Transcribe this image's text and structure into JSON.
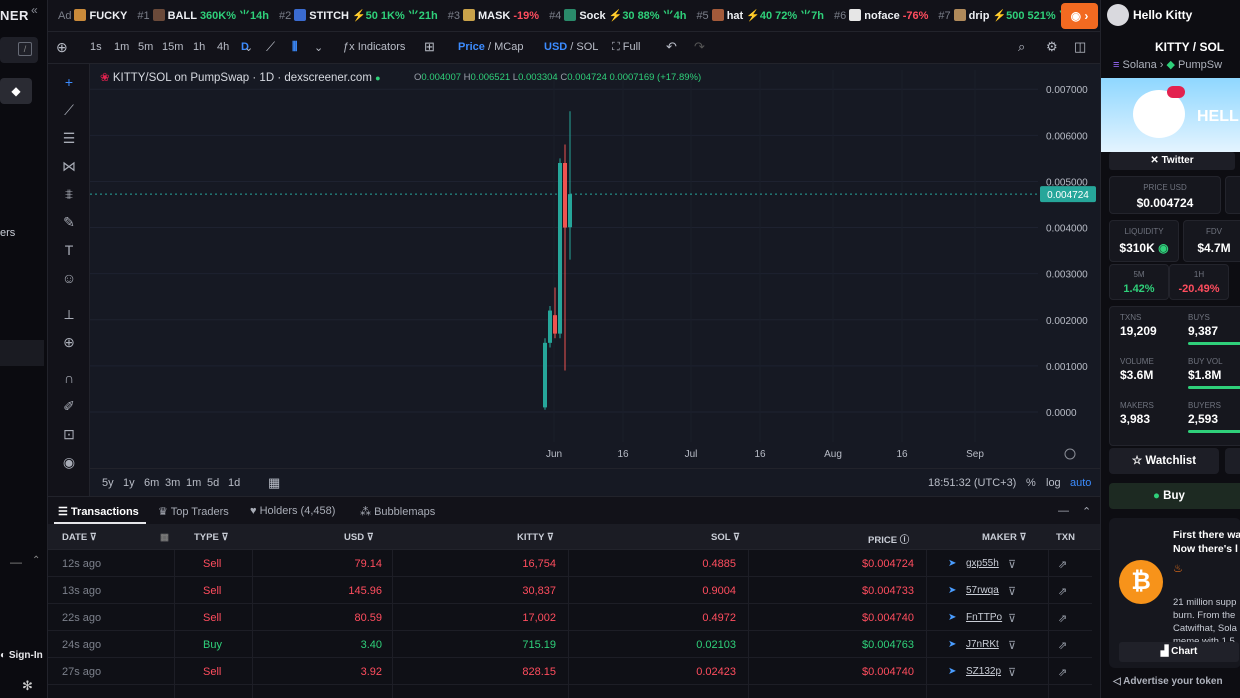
{
  "brand": {
    "text": "NER"
  },
  "sidebar": {
    "partial_label": "ers",
    "sign_in": "Sign-In"
  },
  "ticker": [
    {
      "rank": "Ad",
      "name": "FUCKY",
      "stats": [],
      "avatar_color": "#c98a3a"
    },
    {
      "rank": "#1",
      "name": "BALL",
      "stats": [
        {
          "text": "360K%",
          "dir": "up"
        },
        {
          "text": "14h",
          "dir": "up",
          "icon": "sprout"
        }
      ],
      "avatar_color": "#6b4a3a"
    },
    {
      "rank": "#2",
      "name": "STITCH",
      "stats": [
        {
          "text": "50",
          "dir": "bolt"
        },
        {
          "text": "1K%",
          "dir": "up"
        },
        {
          "text": "21h",
          "dir": "up",
          "icon": "sprout"
        }
      ],
      "avatar_color": "#3a6bd0"
    },
    {
      "rank": "#3",
      "name": "MASK",
      "stats": [
        {
          "text": "-19%",
          "dir": "dn"
        }
      ],
      "avatar_color": "#c9a24a"
    },
    {
      "rank": "#4",
      "name": "Sock",
      "stats": [
        {
          "text": "30",
          "dir": "bolt"
        },
        {
          "text": "88%",
          "dir": "up"
        },
        {
          "text": "4h",
          "dir": "up",
          "icon": "sprout"
        }
      ],
      "avatar_color": "#2a8a6a"
    },
    {
      "rank": "#5",
      "name": "hat",
      "stats": [
        {
          "text": "40",
          "dir": "bolt"
        },
        {
          "text": "72%",
          "dir": "up"
        },
        {
          "text": "7h",
          "dir": "up",
          "icon": "sprout"
        }
      ],
      "avatar_color": "#a35a3a"
    },
    {
      "rank": "#6",
      "name": "noface",
      "stats": [
        {
          "text": "-76%",
          "dir": "dn"
        }
      ],
      "avatar_color": "#e6e6e6"
    },
    {
      "rank": "#7",
      "name": "drip",
      "stats": [
        {
          "text": "500",
          "dir": "bolt"
        },
        {
          "text": "521%",
          "dir": "up"
        },
        {
          "text": "2",
          "dir": "up",
          "icon": "sprout"
        }
      ],
      "avatar_color": "#b08a5a"
    }
  ],
  "toolbar": {
    "intervals": [
      "1s",
      "1m",
      "5m",
      "15m",
      "1h",
      "4h",
      "D"
    ],
    "active_interval": "D",
    "indicators": "Indicators",
    "price_label": "Price",
    "mcap_label": "MCap",
    "usd_label": "USD",
    "sol_label": "SOL",
    "full_label": "Full"
  },
  "chart_legend": {
    "title": "KITTY/SOL on PumpSwap · 1D · dexscreener.com",
    "o_label": "O",
    "o": "0.004007",
    "h_label": "H",
    "h": "0.006521",
    "l_label": "L",
    "l": "0.003304",
    "c_label": "C",
    "c": "0.004724",
    "change": "0.0007169 (+17.89%)"
  },
  "chart_data": {
    "type": "candlestick",
    "title": "KITTY/SOL on PumpSwap · 1D · dexscreener.com",
    "y_ticks": [
      "0.007000",
      "0.006000",
      "0.005000",
      "0.004000",
      "0.003000",
      "0.002000",
      "0.001000",
      "0.0000"
    ],
    "ylim": [
      0,
      0.0072
    ],
    "x_ticks": [
      "Jun",
      "16",
      "Jul",
      "16",
      "Aug",
      "16",
      "Sep"
    ],
    "last_price": "0.004724",
    "last_price_value": 0.004724,
    "candles": [
      {
        "o": 0.0001,
        "h": 0.0016,
        "l": 5e-05,
        "c": 0.0015,
        "dir": "up"
      },
      {
        "o": 0.0015,
        "h": 0.0023,
        "l": 0.0014,
        "c": 0.0022,
        "dir": "up"
      },
      {
        "o": 0.0021,
        "h": 0.0027,
        "l": 0.0016,
        "c": 0.0017,
        "dir": "down"
      },
      {
        "o": 0.0017,
        "h": 0.0055,
        "l": 0.0016,
        "c": 0.0054,
        "dir": "up"
      },
      {
        "o": 0.0054,
        "h": 0.0058,
        "l": 0.0009,
        "c": 0.004,
        "dir": "down"
      },
      {
        "o": 0.004007,
        "h": 0.006521,
        "l": 0.003304,
        "c": 0.004724,
        "dir": "up"
      }
    ],
    "up_color": "#26a69a",
    "down_color": "#ef5350",
    "grid": true
  },
  "range": {
    "buttons": [
      "5y",
      "1y",
      "6m",
      "3m",
      "1m",
      "5d",
      "1d"
    ],
    "time": "18:51:32 (UTC+3)",
    "pct": "%",
    "log": "log",
    "auto": "auto"
  },
  "tabs": [
    {
      "label": "Transactions",
      "active": true
    },
    {
      "label": "Top Traders",
      "active": false
    },
    {
      "label": "Holders (4,458)",
      "active": false
    },
    {
      "label": "Bubblemaps",
      "active": false
    }
  ],
  "table": {
    "headers": {
      "date": "DATE",
      "type": "TYPE",
      "usd": "USD",
      "token": "KITTY",
      "sol": "SOL",
      "price": "PRICE",
      "maker": "MAKER",
      "txn": "TXN"
    },
    "rows": [
      {
        "age": "12s ago",
        "type": "Sell",
        "usd": "79.14",
        "token": "16,754",
        "sol": "0.4885",
        "price": "$0.004724",
        "maker": "gxp55h"
      },
      {
        "age": "13s ago",
        "type": "Sell",
        "usd": "145.96",
        "token": "30,837",
        "sol": "0.9004",
        "price": "$0.004733",
        "maker": "57rwqa"
      },
      {
        "age": "22s ago",
        "type": "Sell",
        "usd": "80.59",
        "token": "17,002",
        "sol": "0.4972",
        "price": "$0.004740",
        "maker": "FnTTPo"
      },
      {
        "age": "24s ago",
        "type": "Buy",
        "usd": "3.40",
        "token": "715.19",
        "sol": "0.02103",
        "price": "$0.004763",
        "maker": "J7nRKt"
      },
      {
        "age": "27s ago",
        "type": "Sell",
        "usd": "3.92",
        "token": "828.15",
        "sol": "0.02423",
        "price": "$0.004740",
        "maker": "SZ132p"
      }
    ]
  },
  "right": {
    "user": "Hello Kitty",
    "pair": "KITTY / SOL",
    "chain": "Solana",
    "dex": "PumpSw",
    "banner_text": "HELL",
    "social": "Twitter",
    "price_usd_label": "PRICE USD",
    "price_usd": "$0.004724",
    "liquidity_label": "LIQUIDITY",
    "liquidity": "$310K",
    "fdv_label": "FDV",
    "fdv": "$4.7M",
    "m5_label": "5M",
    "m5": "1.42%",
    "h1_label": "1H",
    "h1": "-20.49%",
    "txns_label": "TXNS",
    "txns": "19,209",
    "buys_label": "BUYS",
    "buys": "9,387",
    "volume_label": "VOLUME",
    "volume": "$3.6M",
    "buyvol_label": "BUY VOL",
    "buyvol": "$1.8M",
    "makers_label": "MAKERS",
    "makers": "3,983",
    "buyers_label": "BUYERS",
    "buyers": "2,593",
    "watchlist": "Watchlist",
    "buy": "Buy",
    "ad_title1": "First there wa",
    "ad_title2": "Now there's l",
    "ad_body1": "21 million supp",
    "ad_body2": "burn. From the",
    "ad_body3": "Catwifhat, Sola",
    "ad_body4": "meme with 1.5",
    "ad_chart": "Chart",
    "advertise": "Advertise your token"
  }
}
